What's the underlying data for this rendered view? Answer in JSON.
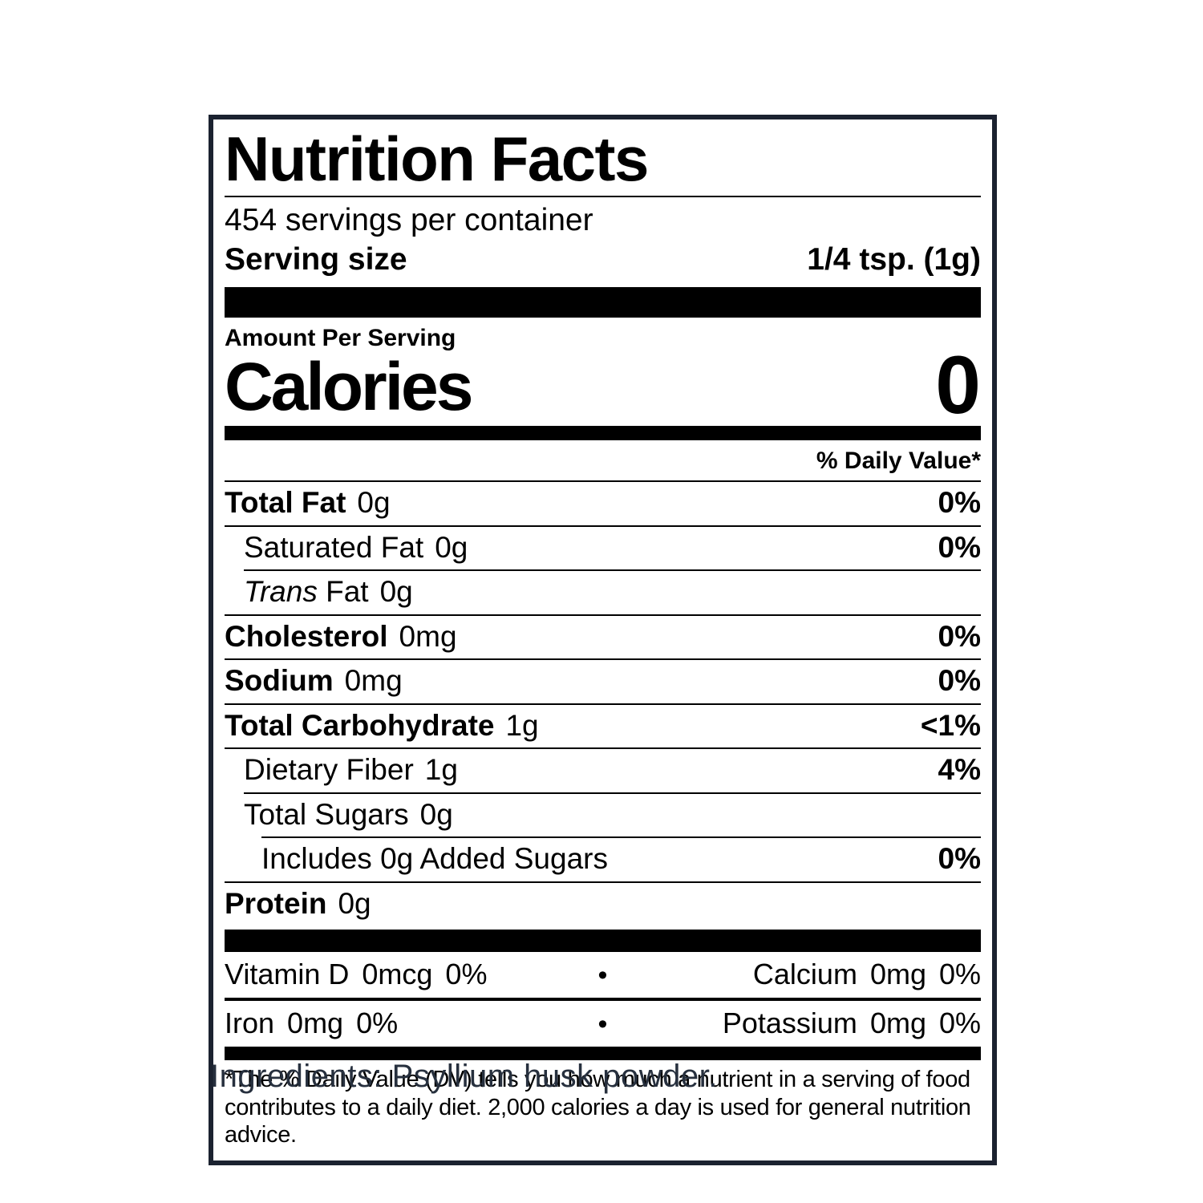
{
  "colors": {
    "label_border": "#1b2230",
    "ingredients_text": "#27303e",
    "label_text": "#000000"
  },
  "label": {
    "title": "Nutrition Facts",
    "servings_per_container": "454 servings per container",
    "serving_size": {
      "label": "Serving size",
      "value": "1/4 tsp. (1g)"
    },
    "amount_per_serving": "Amount Per Serving",
    "calories": {
      "label": "Calories",
      "value": "0"
    },
    "daily_value_header": "% Daily Value*",
    "nutrients": [
      {
        "name": "Total Fat",
        "amount": "0g",
        "dv": "0%"
      },
      {
        "name": "Saturated Fat",
        "amount": "0g",
        "dv": "0%"
      },
      {
        "name_italic": "Trans",
        "name": "Fat",
        "amount": "0g",
        "dv": ""
      },
      {
        "name": "Cholesterol",
        "amount": "0mg",
        "dv": "0%"
      },
      {
        "name": "Sodium",
        "amount": "0mg",
        "dv": "0%"
      },
      {
        "name": "Total Carbohydrate",
        "amount": "1g",
        "dv": "<1%"
      },
      {
        "name": "Dietary Fiber",
        "amount": "1g",
        "dv": "4%"
      },
      {
        "name": "Total Sugars",
        "amount": "0g",
        "dv": ""
      },
      {
        "name": "Includes 0g Added Sugars",
        "amount": "",
        "dv": "0%"
      },
      {
        "name": "Protein",
        "amount": "0g",
        "dv": ""
      }
    ],
    "bullet": "•",
    "micronutrients": [
      {
        "left": {
          "name": "Vitamin D",
          "amount": "0mcg",
          "dv": "0%"
        },
        "right": {
          "name": "Calcium",
          "amount": "0mg",
          "dv": "0%"
        }
      },
      {
        "left": {
          "name": "Iron",
          "amount": "0mg",
          "dv": "0%"
        },
        "right": {
          "name": "Potassium",
          "amount": "0mg",
          "dv": "0%"
        }
      }
    ],
    "footnote": "*The % Daily Value (DV) tells you how much a nutrient in a serving of food contributes to a daily diet.  2,000 calories a day is used for general nutrition advice."
  },
  "ingredients": "Ingredients: Psyllium husk powder."
}
